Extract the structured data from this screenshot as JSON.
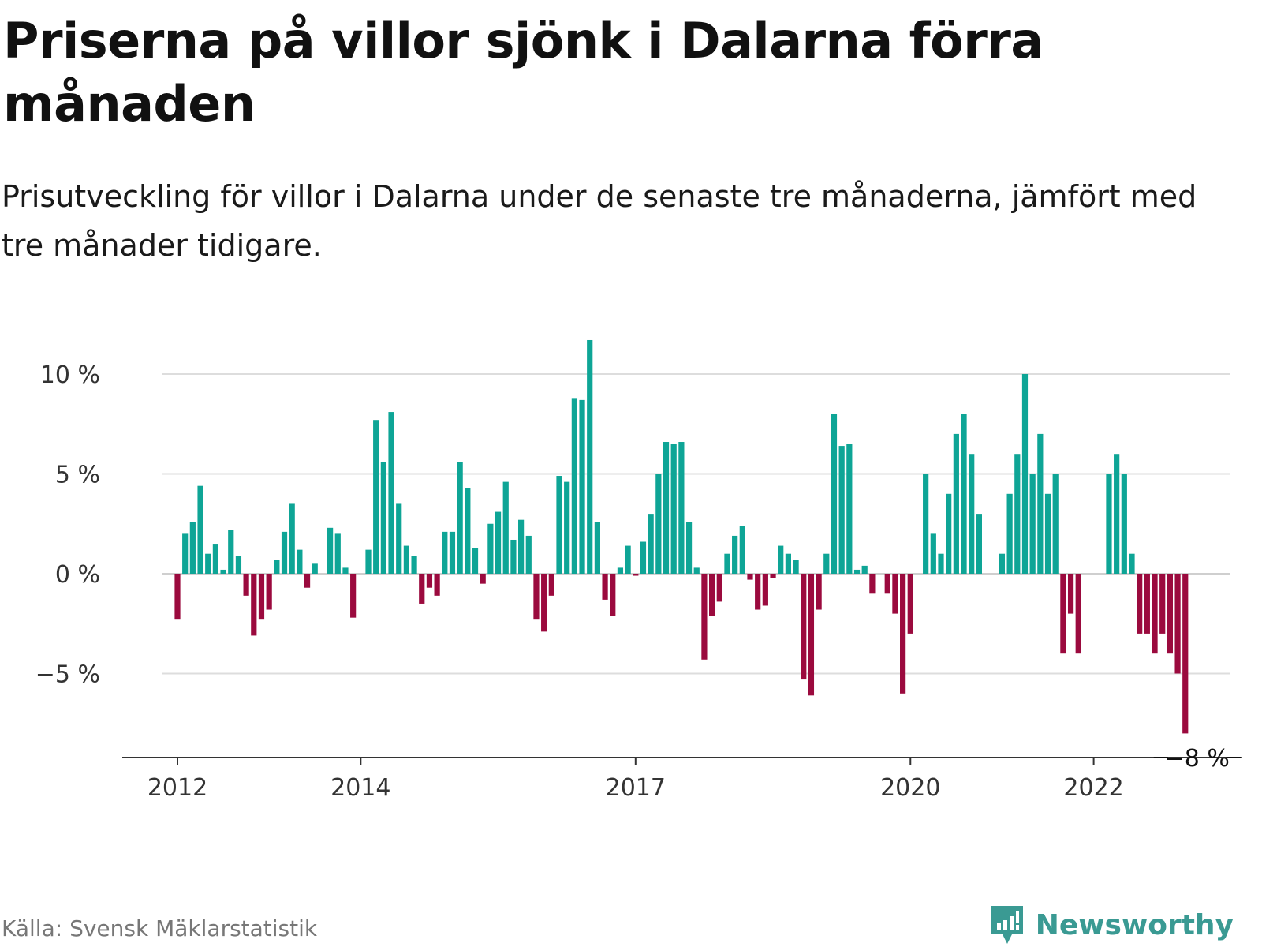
{
  "title": "Priserna på villor sjönk i Dalarna förra månaden",
  "subtitle": "Prisutveckling för villor i Dalarna under de senaste tre månaderna, jämfört med tre månader tidigare.",
  "source": "Källa: Svensk Mäklarstatistik",
  "brand": {
    "name": "Newsworthy",
    "icon": "newsworthy-logo-icon"
  },
  "colors": {
    "positive": "#0ea596",
    "negative": "#9b0a3e",
    "grid": "#dddddd",
    "axis": "#333333",
    "brand": "#3a9a93"
  },
  "chart_data": {
    "type": "bar",
    "title": "Priserna på villor sjönk i Dalarna förra månaden",
    "subtitle": "Prisutveckling för villor i Dalarna under de senaste tre månaderna, jämfört med tre månader tidigare.",
    "unit": "%",
    "ylim": [
      -9.5,
      12
    ],
    "grid": true,
    "y_ticks": [
      {
        "value": 10,
        "label": "10 %"
      },
      {
        "value": 5,
        "label": "5 %"
      },
      {
        "value": 0,
        "label": "0 %"
      },
      {
        "value": -5,
        "label": "−5 %"
      }
    ],
    "x_ticks": [
      {
        "index": 0,
        "label": "2012"
      },
      {
        "index": 24,
        "label": "2014"
      },
      {
        "index": 60,
        "label": "2017"
      },
      {
        "index": 96,
        "label": "2020"
      },
      {
        "index": 120,
        "label": "2022"
      }
    ],
    "end_label": "−8 %",
    "values": [
      -2.3,
      2.0,
      2.6,
      4.4,
      1.0,
      1.5,
      0.2,
      2.2,
      0.9,
      -1.1,
      -3.1,
      -2.3,
      -1.8,
      0.7,
      2.1,
      3.5,
      1.2,
      -0.7,
      0.5,
      null,
      2.3,
      2.0,
      0.3,
      -2.2,
      null,
      1.2,
      7.7,
      5.6,
      8.1,
      3.5,
      1.4,
      0.9,
      -1.5,
      -0.7,
      -1.1,
      2.1,
      2.1,
      5.6,
      4.3,
      1.3,
      -0.5,
      2.5,
      3.1,
      4.6,
      1.7,
      2.7,
      1.9,
      -2.3,
      -2.9,
      -1.1,
      4.9,
      4.6,
      8.8,
      8.7,
      11.7,
      2.6,
      -1.3,
      -2.1,
      0.3,
      1.4,
      -0.1,
      1.6,
      3.0,
      5.0,
      6.6,
      6.5,
      6.6,
      2.6,
      0.3,
      -4.3,
      -2.1,
      -1.4,
      1.0,
      1.9,
      2.4,
      -0.3,
      -1.8,
      -1.6,
      -0.2,
      1.4,
      1.0,
      0.7,
      -5.3,
      -6.1,
      -1.8,
      1.0,
      8.0,
      6.4,
      6.5,
      0.2,
      0.4,
      -1.0,
      null,
      -1.0,
      -2.0,
      -6.0,
      -3.0,
      null,
      5.0,
      2.0,
      1.0,
      4.0,
      7.0,
      8.0,
      6.0,
      3.0,
      null,
      null,
      1.0,
      4.0,
      6.0,
      10.0,
      5.0,
      7.0,
      4.0,
      5.0,
      -4.0,
      -2.0,
      -4.0,
      null,
      null,
      null,
      5.0,
      6.0,
      5.0,
      1.0,
      -3.0,
      -3.0,
      -4.0,
      -3.0,
      -4.0,
      -5.0,
      -8.0
    ]
  }
}
